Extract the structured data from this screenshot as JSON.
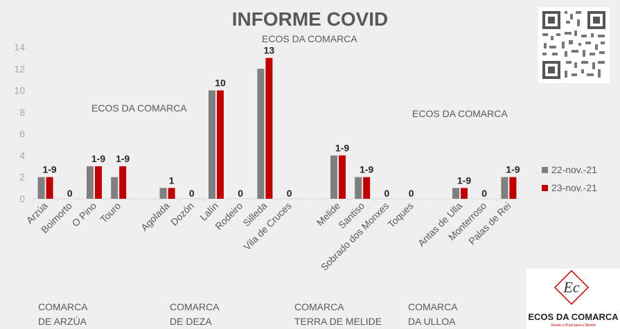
{
  "page": {
    "title": "INFORME COVID",
    "watermark": "ECOS DA COMARCA"
  },
  "colors": {
    "series1": "#7f7f7f",
    "series2": "#c00000",
    "axis": "#d9d9d9",
    "text": "#595959"
  },
  "groups": [
    {
      "line1": "COMARCA",
      "line2": "DE ARZÚA"
    },
    {
      "line1": "COMARCA",
      "line2": "DE DEZA"
    },
    {
      "line1": "COMARCA",
      "line2": "TERRA DE MELIDE"
    },
    {
      "line1": "COMARCA",
      "line2": "DA ULLOA"
    }
  ],
  "logo": {
    "text": "ECOS DA COMARCA",
    "tagline": "Dende o Rural para o Mundo",
    "monogram": "Ec"
  },
  "chart_data": {
    "type": "bar",
    "categories": [
      "Arzúa",
      "Boimorto",
      "O Pino",
      "Touro",
      "",
      "Agolada",
      "Dozón",
      "Lalín",
      "Rodeiro",
      "Silleda",
      "Vila de Cruces",
      "",
      "Melide",
      "Santiso",
      "Sobrado dos Monxes",
      "Toques",
      "",
      "Antas de Ulla",
      "Monterroso",
      "Palas de Rei"
    ],
    "series": [
      {
        "name": "22-nov.-21",
        "values": [
          2,
          0,
          3,
          2,
          null,
          1,
          0,
          10,
          0,
          12,
          0,
          null,
          4,
          2,
          0,
          0,
          null,
          1,
          0,
          2
        ]
      },
      {
        "name": "23-nov.-21",
        "values": [
          2,
          0,
          3,
          3,
          null,
          1,
          0,
          10,
          0,
          13,
          0,
          null,
          4,
          2,
          0,
          0,
          null,
          1,
          0,
          2
        ]
      }
    ],
    "data_labels": [
      "1-9",
      "0",
      "1-9",
      "1-9",
      "",
      "1",
      "0",
      "10",
      "0",
      "13",
      "0",
      "",
      "1-9",
      "1-9",
      "0",
      "0",
      "",
      "1-9",
      "0",
      "1-9"
    ],
    "yticks": [
      0,
      2,
      4,
      6,
      8,
      10,
      12,
      14
    ],
    "ylim": [
      0,
      14
    ],
    "grid": false,
    "legend": "right"
  }
}
